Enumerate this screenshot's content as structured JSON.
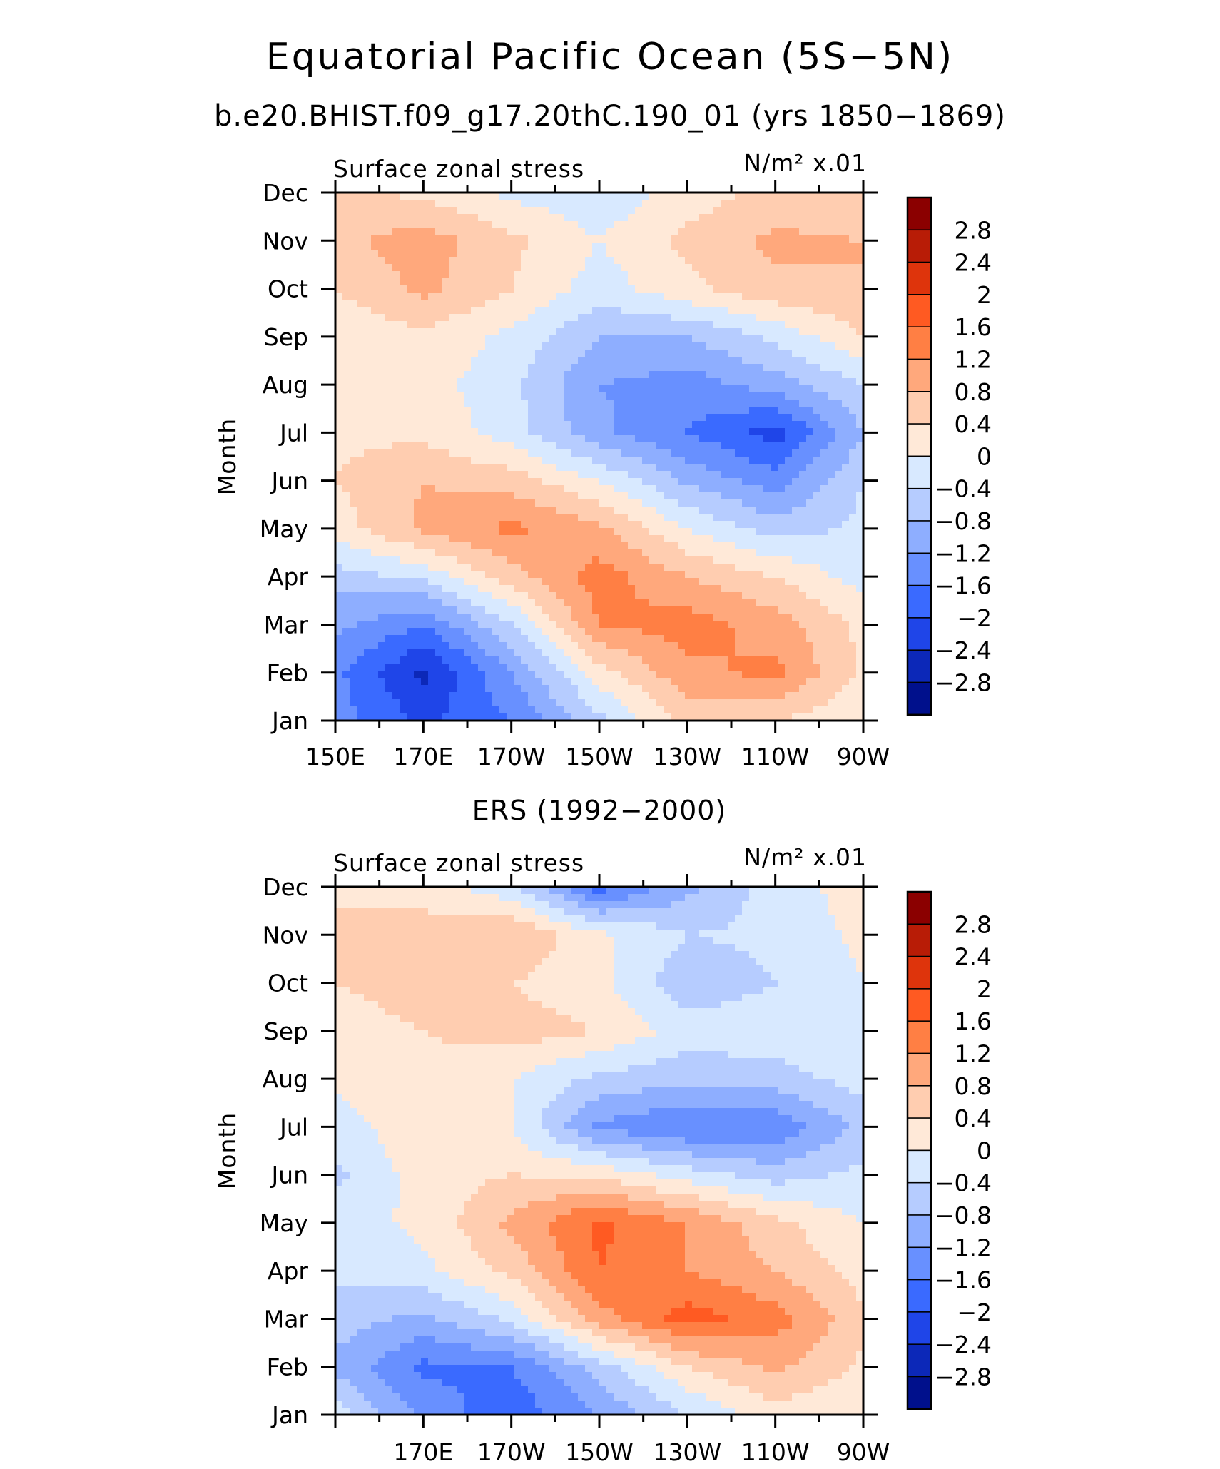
{
  "figure": {
    "main_title": "Equatorial Pacific Ocean (5S−5N)",
    "subtitle": "b.e20.BHIST.f09_g17.20thC.190_01 (yrs 1850−1869)",
    "second_panel_title": "ERS (1992−2000)"
  },
  "colorbar": {
    "labels": [
      "2.8",
      "2.4",
      "2",
      "1.6",
      "1.2",
      "0.8",
      "0.4",
      "0",
      "−0.4",
      "−0.8",
      "−1.2",
      "−1.6",
      "−2",
      "−2.4",
      "−2.8"
    ],
    "colors": [
      "#8b0000",
      "#b81c06",
      "#de340c",
      "#ff5a22",
      "#ff7f44",
      "#ffa87c",
      "#ffcdb0",
      "#ffe9d8",
      "#d8e9ff",
      "#b6ccff",
      "#8eaeff",
      "#6890ff",
      "#3a6aff",
      "#1f45e8",
      "#0c28b8",
      "#00108c"
    ]
  },
  "chart_data": [
    {
      "type": "heatmap",
      "title": "Surface zonal stress",
      "units": "N/m² x.01",
      "xlabel": "",
      "ylabel": "Month",
      "x_tick_labels": [
        "150E",
        "170E",
        "170W",
        "150W",
        "130W",
        "110W",
        "90W"
      ],
      "x": [
        "150E",
        "170E",
        "170W",
        "150W",
        "130W",
        "110W",
        "90W"
      ],
      "y_tick_labels": [
        "Jan",
        "Feb",
        "Mar",
        "Apr",
        "May",
        "Jun",
        "Jul",
        "Aug",
        "Sep",
        "Oct",
        "Nov",
        "Dec"
      ],
      "contour_levels": [
        -2.8,
        -2.4,
        -2,
        -1.6,
        -1.2,
        -0.8,
        -0.4,
        0,
        0.4,
        0.8,
        1.2,
        1.6,
        2,
        2.4,
        2.8
      ],
      "values": [
        [
          -1.4,
          -2.1,
          -1.6,
          -0.5,
          0.6,
          0.4,
          0.1
        ],
        [
          -1.5,
          -2.5,
          -1.2,
          0.2,
          1.1,
          1.3,
          0.3
        ],
        [
          -1.1,
          -1.6,
          -0.4,
          1.2,
          1.4,
          1.0,
          0.3
        ],
        [
          -0.6,
          -0.3,
          0.6,
          1.4,
          0.8,
          0.4,
          -0.2
        ],
        [
          0.2,
          0.9,
          1.3,
          0.9,
          0.0,
          -0.6,
          -0.3
        ],
        [
          0.4,
          0.8,
          0.6,
          0.0,
          -0.9,
          -1.4,
          -0.4
        ],
        [
          0.3,
          0.3,
          -0.2,
          -1.1,
          -1.6,
          -2.2,
          -0.8
        ],
        [
          0.2,
          0.2,
          -0.3,
          -1.2,
          -1.4,
          -1.0,
          -0.4
        ],
        [
          0.1,
          0.3,
          -0.1,
          -0.8,
          -0.8,
          -0.3,
          0.4
        ],
        [
          0.4,
          0.9,
          0.4,
          -0.2,
          0.3,
          0.7,
          0.8
        ],
        [
          0.7,
          1.0,
          0.5,
          0.0,
          0.5,
          0.9,
          0.8
        ],
        [
          0.5,
          0.3,
          -0.1,
          -0.3,
          0.2,
          0.5,
          0.4
        ]
      ]
    },
    {
      "type": "heatmap",
      "title": "Surface zonal stress",
      "units": "N/m² x.01",
      "xlabel": "",
      "ylabel": "Month",
      "x_tick_labels": [
        "170E",
        "170W",
        "150W",
        "130W",
        "110W",
        "90W"
      ],
      "x": [
        "150E",
        "170E",
        "170W",
        "150W",
        "130W",
        "110W",
        "90W"
      ],
      "y_tick_labels": [
        "Jan",
        "Feb",
        "Mar",
        "Apr",
        "May",
        "Jun",
        "Jul",
        "Aug",
        "Sep",
        "Oct",
        "Nov",
        "Dec"
      ],
      "contour_levels": [
        -2.8,
        -2.4,
        -2,
        -1.6,
        -1.2,
        -0.8,
        -0.4,
        0,
        0.4,
        0.8,
        1.2,
        1.6,
        2,
        2.4,
        2.8
      ],
      "values": [
        [
          -0.2,
          -1.3,
          -1.9,
          -1.2,
          -0.4,
          0.2,
          0.1
        ],
        [
          -0.9,
          -1.7,
          -1.6,
          -0.6,
          0.4,
          0.9,
          0.3
        ],
        [
          -0.6,
          -0.9,
          -0.3,
          1.0,
          1.8,
          1.4,
          0.5
        ],
        [
          -0.3,
          -0.1,
          0.5,
          1.6,
          1.2,
          0.8,
          0.2
        ],
        [
          -0.2,
          0.1,
          0.9,
          1.7,
          1.2,
          0.5,
          0.0
        ],
        [
          -0.5,
          0.2,
          0.4,
          0.3,
          -0.2,
          -0.6,
          -0.3
        ],
        [
          -0.2,
          0.3,
          0.0,
          -1.3,
          -1.6,
          -1.5,
          -0.7
        ],
        [
          0.1,
          0.3,
          0.0,
          -0.5,
          -0.7,
          -0.6,
          -0.2
        ],
        [
          0.3,
          0.4,
          0.6,
          0.4,
          -0.2,
          -0.1,
          0.0
        ],
        [
          0.4,
          0.5,
          0.4,
          0.1,
          -0.7,
          -0.4,
          0.0
        ],
        [
          0.5,
          0.6,
          0.8,
          0.1,
          -0.4,
          -0.3,
          0.1
        ],
        [
          0.3,
          0.2,
          -0.3,
          -1.8,
          -0.9,
          -0.2,
          0.2
        ]
      ]
    }
  ]
}
